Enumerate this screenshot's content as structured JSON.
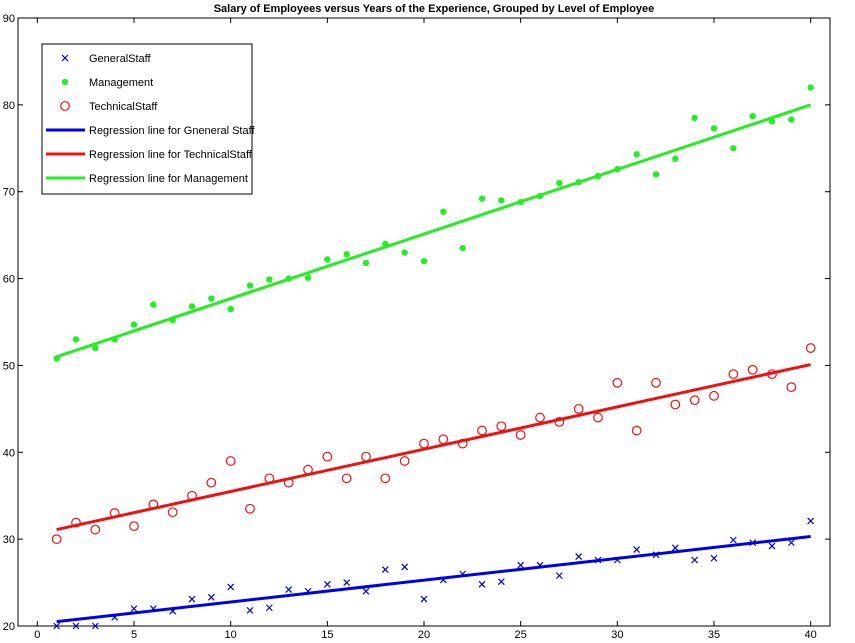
{
  "chart_data": {
    "type": "scatter",
    "title": "Salary of  Employees versus Years of the Experience, Grouped by Level of Employee",
    "xlabel": "",
    "ylabel": "",
    "xlim": [
      -1,
      41
    ],
    "ylim": [
      20,
      90
    ],
    "xticks": [
      0,
      5,
      10,
      15,
      20,
      25,
      30,
      35,
      40
    ],
    "yticks": [
      20,
      30,
      40,
      50,
      60,
      70,
      80,
      90
    ],
    "grid": false,
    "legend_position": "top-left",
    "series": [
      {
        "name": "GeneralStaff",
        "marker": "x",
        "color": "#0000cc",
        "x": [
          1,
          2,
          3,
          4,
          5,
          6,
          7,
          8,
          9,
          10,
          11,
          12,
          13,
          14,
          15,
          16,
          17,
          18,
          19,
          20,
          21,
          22,
          23,
          24,
          25,
          26,
          27,
          28,
          29,
          30,
          31,
          32,
          33,
          34,
          35,
          36,
          37,
          38,
          39,
          40
        ],
        "y": [
          20.0,
          20.0,
          20.0,
          21.0,
          22.0,
          22.0,
          21.7,
          23.1,
          23.3,
          24.5,
          21.8,
          22.1,
          24.2,
          24.0,
          24.8,
          25.0,
          24.0,
          26.5,
          26.8,
          23.1,
          25.3,
          26.0,
          24.8,
          25.1,
          27.0,
          27.0,
          25.8,
          28.0,
          27.6,
          27.6,
          28.8,
          28.2,
          29.0,
          27.6,
          27.8,
          29.9,
          29.6,
          29.2,
          29.6,
          32.1
        ]
      },
      {
        "name": "Management",
        "marker": "dot",
        "color": "#22ee22",
        "x": [
          1,
          2,
          3,
          4,
          5,
          6,
          7,
          8,
          9,
          10,
          11,
          12,
          13,
          14,
          15,
          16,
          17,
          18,
          19,
          20,
          21,
          22,
          23,
          24,
          25,
          26,
          27,
          28,
          29,
          30,
          31,
          32,
          33,
          34,
          35,
          36,
          37,
          38,
          39,
          40
        ],
        "y": [
          50.8,
          53.0,
          52.0,
          53.0,
          54.7,
          57.0,
          55.2,
          56.8,
          57.7,
          56.5,
          59.2,
          59.9,
          60.0,
          60.1,
          62.2,
          62.8,
          61.8,
          64.0,
          63.0,
          62.0,
          67.7,
          63.5,
          69.2,
          69.0,
          68.8,
          69.5,
          71.0,
          71.1,
          71.8,
          72.6,
          74.3,
          72.0,
          73.8,
          78.5,
          77.3,
          75.0,
          78.7,
          78.1,
          78.3,
          82.0
        ]
      },
      {
        "name": "TechnicalStaff",
        "marker": "circle",
        "color": "#ee1111",
        "x": [
          1,
          2,
          3,
          4,
          5,
          6,
          7,
          8,
          9,
          10,
          11,
          12,
          13,
          14,
          15,
          16,
          17,
          18,
          19,
          20,
          21,
          22,
          23,
          24,
          25,
          26,
          27,
          28,
          29,
          30,
          31,
          32,
          33,
          34,
          35,
          36,
          37,
          38,
          39,
          40
        ],
        "y": [
          30.0,
          31.9,
          31.1,
          33.0,
          31.5,
          34.0,
          33.1,
          35.0,
          36.5,
          39.0,
          33.5,
          37.0,
          36.5,
          38.0,
          39.5,
          37.0,
          39.5,
          37.0,
          39.0,
          41.0,
          41.5,
          41.0,
          42.5,
          43.0,
          42.0,
          44.0,
          43.5,
          45.0,
          44.0,
          48.0,
          42.5,
          48.0,
          45.5,
          46.0,
          46.5,
          49.0,
          49.5,
          49.0,
          47.5,
          52.0
        ]
      }
    ],
    "regression_lines": [
      {
        "name": "Regression line for Gneneral Staff",
        "color": "#0000ee",
        "x": [
          1,
          40
        ],
        "y": [
          20.5,
          30.3
        ]
      },
      {
        "name": "Regression line for TechnicalStaff",
        "color": "#ee1111",
        "x": [
          1,
          40
        ],
        "y": [
          31.1,
          50.1
        ]
      },
      {
        "name": "Regression line for Management",
        "color": "#22ee22",
        "x": [
          1,
          40
        ],
        "y": [
          51.0,
          80.0
        ]
      }
    ]
  }
}
